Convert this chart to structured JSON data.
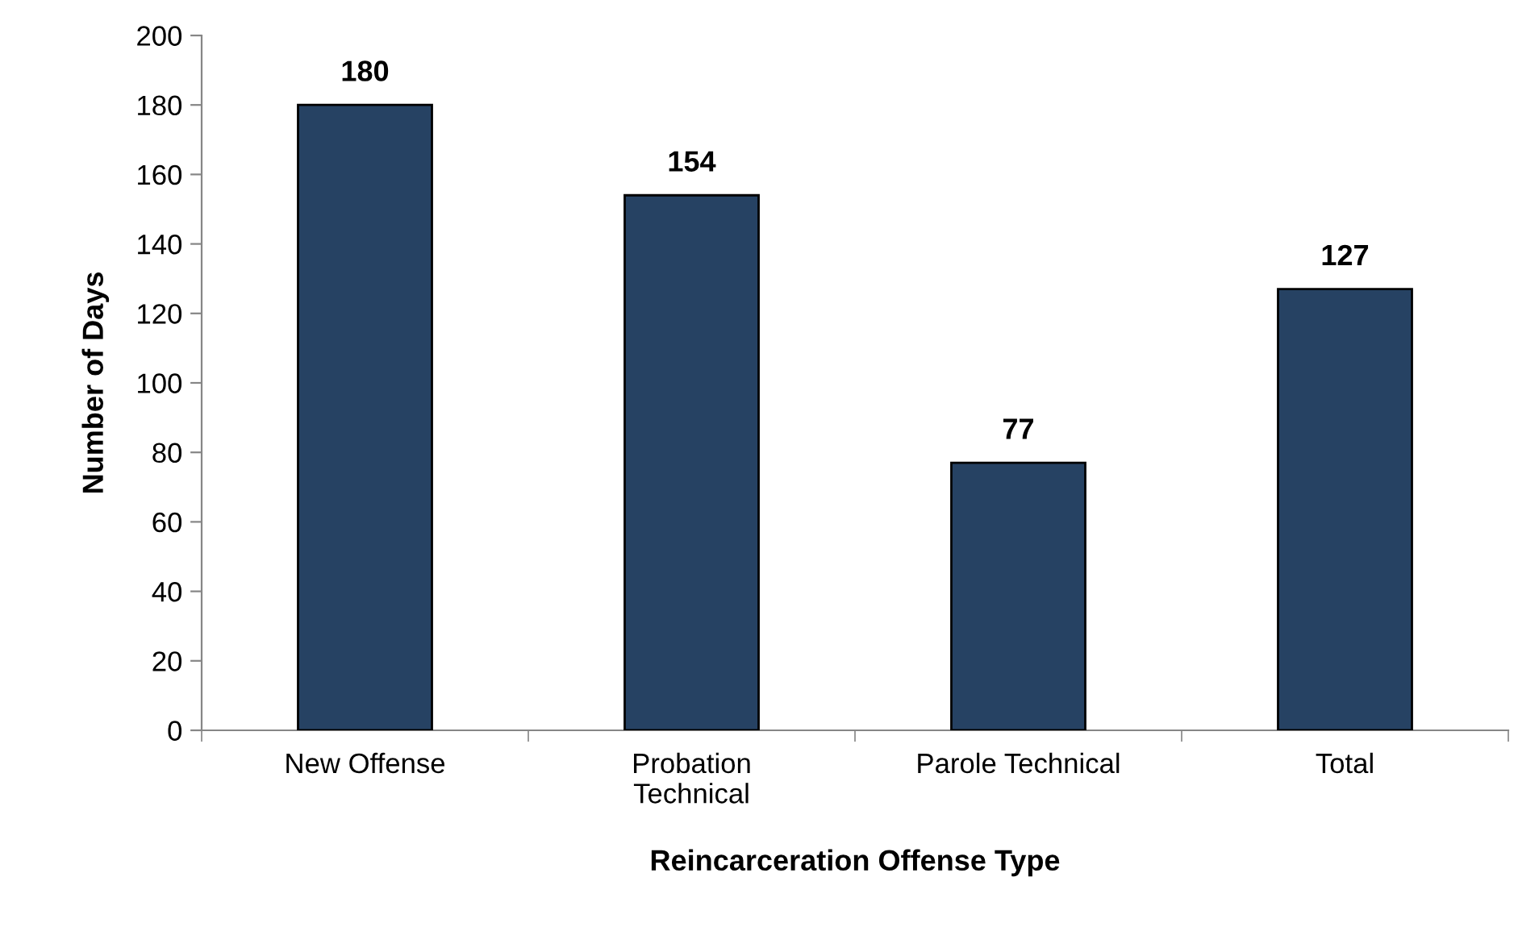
{
  "chart_data": {
    "type": "bar",
    "xlabel": "Reincarceration Offense Type",
    "ylabel": "Number of Days",
    "categories": [
      "New Offense",
      "Probation\nTechnical",
      "Parole Technical",
      "Total"
    ],
    "values": [
      180,
      154,
      77,
      127
    ],
    "color": "#264263",
    "ylim": [
      0,
      200
    ],
    "yticks": [
      0,
      20,
      40,
      60,
      80,
      100,
      120,
      140,
      160,
      180,
      200
    ],
    "grid": false,
    "data_labels": true
  }
}
